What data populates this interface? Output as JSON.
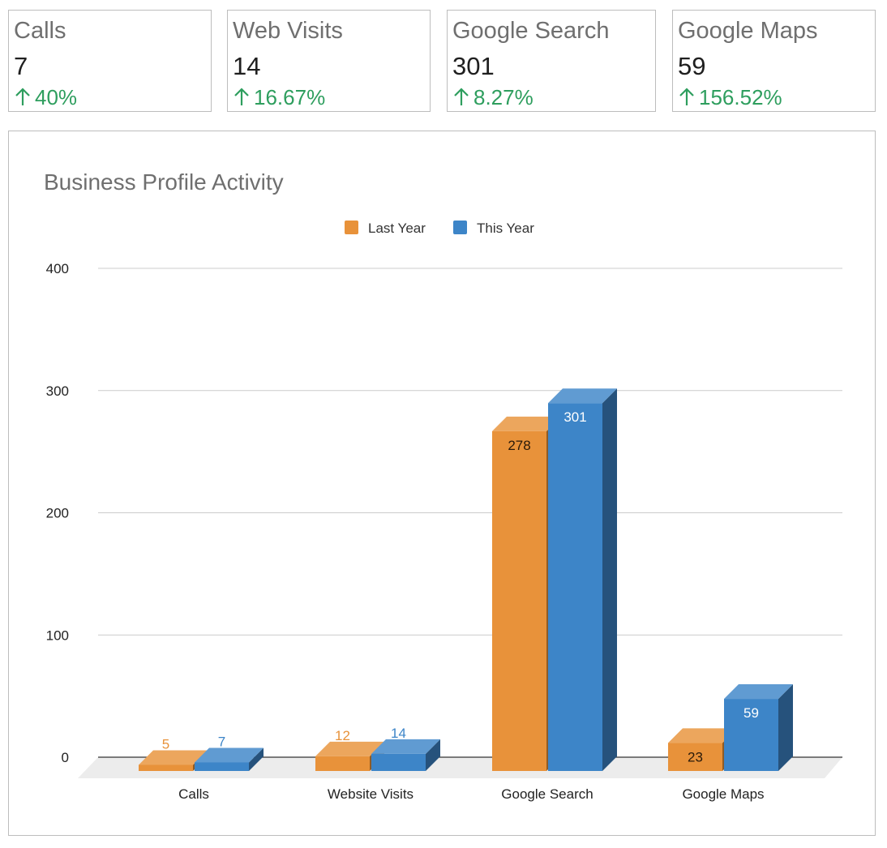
{
  "kpis": [
    {
      "title": "Calls",
      "value": "7",
      "change": "40%"
    },
    {
      "title": "Web Visits",
      "value": "14",
      "change": "16.67%"
    },
    {
      "title": "Google Search",
      "value": "301",
      "change": "8.27%"
    },
    {
      "title": "Google Maps",
      "value": "59",
      "change": "156.52%"
    }
  ],
  "colors": {
    "last_year": "#e8923a",
    "this_year": "#3d85c8",
    "positive": "#2e9e5e"
  },
  "chart_data": {
    "type": "bar",
    "title": "Business Profile Activity",
    "categories": [
      "Calls",
      "Website Visits",
      "Google Search",
      "Google Maps"
    ],
    "series": [
      {
        "name": "Last Year",
        "values": [
          5,
          12,
          278,
          23
        ]
      },
      {
        "name": "This Year",
        "values": [
          7,
          14,
          301,
          59
        ]
      }
    ],
    "ylim": [
      0,
      400
    ],
    "yticks": [
      0,
      100,
      200,
      300,
      400
    ],
    "grid": true,
    "legend": "top-center",
    "xlabel": "",
    "ylabel": ""
  }
}
